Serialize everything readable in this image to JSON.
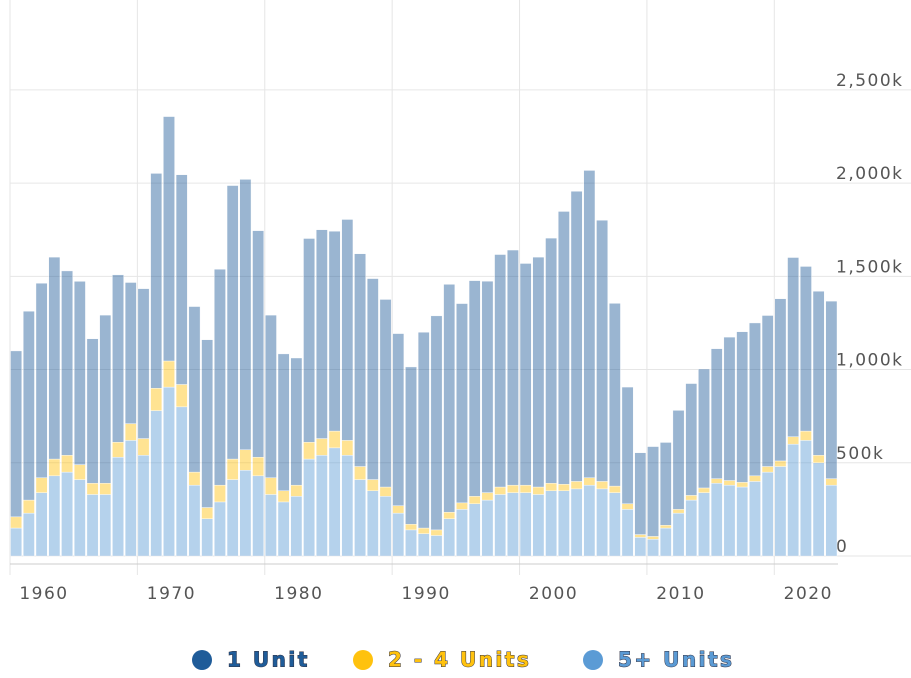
{
  "chart_data": {
    "type": "stacked_bar",
    "x": [
      1960,
      1961,
      1962,
      1963,
      1964,
      1965,
      1966,
      1967,
      1968,
      1969,
      1970,
      1971,
      1972,
      1973,
      1974,
      1975,
      1976,
      1977,
      1978,
      1979,
      1980,
      1981,
      1982,
      1983,
      1984,
      1985,
      1986,
      1987,
      1988,
      1989,
      1990,
      1991,
      1992,
      1993,
      1994,
      1995,
      1996,
      1997,
      1998,
      1999,
      2000,
      2001,
      2002,
      2003,
      2004,
      2005,
      2006,
      2007,
      2008,
      2009,
      2010,
      2011,
      2012,
      2013,
      2014,
      2015,
      2016,
      2017,
      2018,
      2019,
      2020,
      2021,
      2022,
      2023,
      2024
    ],
    "series": [
      {
        "name": "1 Unit",
        "color": "#1f5c99",
        "values": [
          890,
          1013,
          1043,
          1083,
          989,
          983,
          775,
          902,
          898,
          757,
          804,
          1152,
          1311,
          1125,
          888,
          900,
          1158,
          1467,
          1450,
          1215,
          872,
          734,
          682,
          1093,
          1120,
          1072,
          1185,
          1141,
          1078,
          1006,
          923,
          844,
          1050,
          1148,
          1222,
          1069,
          1157,
          1134,
          1247,
          1261,
          1189,
          1233,
          1315,
          1463,
          1556,
          1648,
          1401,
          980,
          626,
          439,
          482,
          444,
          531,
          600,
          638,
          697,
          769,
          808,
          820,
          810,
          870,
          961,
          883,
          880,
          952
        ]
      },
      {
        "name": "2 - 4 Units",
        "color": "#ffc20e",
        "values": [
          60,
          70,
          80,
          90,
          90,
          80,
          60,
          60,
          80,
          90,
          90,
          120,
          140,
          120,
          70,
          60,
          90,
          110,
          110,
          100,
          90,
          60,
          60,
          90,
          90,
          90,
          80,
          70,
          60,
          50,
          40,
          30,
          30,
          30,
          35,
          35,
          40,
          40,
          40,
          40,
          40,
          40,
          40,
          35,
          40,
          40,
          40,
          35,
          30,
          15,
          15,
          15,
          20,
          25,
          25,
          25,
          25,
          25,
          30,
          30,
          30,
          40,
          50,
          40,
          35
        ]
      },
      {
        "name": "5+ Units",
        "color": "#5b9bd5",
        "values": [
          150,
          230,
          340,
          430,
          450,
          410,
          330,
          330,
          530,
          620,
          540,
          780,
          906,
          800,
          380,
          200,
          290,
          410,
          460,
          430,
          330,
          290,
          320,
          520,
          540,
          580,
          540,
          410,
          350,
          320,
          230,
          140,
          120,
          110,
          200,
          250,
          280,
          300,
          330,
          340,
          340,
          330,
          350,
          350,
          360,
          380,
          360,
          340,
          250,
          100,
          90,
          150,
          230,
          300,
          340,
          390,
          380,
          370,
          400,
          450,
          480,
          600,
          620,
          500,
          380
        ]
      }
    ],
    "xlim": [
      1960,
      2025
    ],
    "xticks": [
      1960,
      1970,
      1980,
      1990,
      2000,
      2010,
      2020
    ],
    "ylim": [
      0,
      2950
    ],
    "yticks": [
      0,
      {
        "value": 500,
        "label": "500k"
      },
      {
        "value": 1000,
        "label": "1,000k"
      },
      {
        "value": 1500,
        "label": "1,500k"
      },
      {
        "value": 2000,
        "label": "2,000k"
      },
      {
        "value": 2500,
        "label": "2,500k"
      }
    ],
    "grid": true,
    "legend": "bottom"
  }
}
